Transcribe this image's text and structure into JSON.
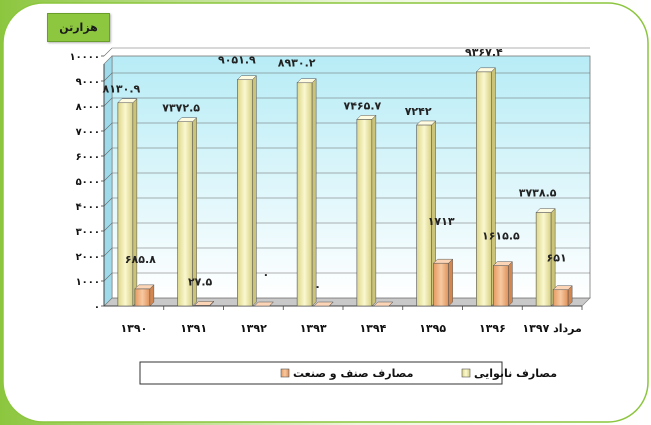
{
  "unit_label": "هزارتن",
  "chart_data": {
    "type": "bar",
    "categories": [
      "۱۳۹۰",
      "۱۳۹۱",
      "۱۳۹۲",
      "۱۳۹۳",
      "۱۳۹۴",
      "۱۳۹۵",
      "۱۳۹۶",
      "مرداد ۱۳۹۷"
    ],
    "series": [
      {
        "name": "مصارف نانوایی",
        "values": [
          8130.9,
          7372.5,
          9051.9,
          8930.2,
          7465.7,
          7242,
          9367.4,
          3738.5
        ],
        "labels": [
          "۸۱۳۰.۹",
          "۷۳۷۲.۵",
          "۹۰۵۱.۹",
          "۸۹۳۰.۲",
          "۷۴۶۵.۷",
          "۷۲۴۲",
          "۹۳۶۷.۴",
          "۳۷۳۸.۵"
        ],
        "color": "#f5f0b8"
      },
      {
        "name": "مصارف صنف و صنعت",
        "values": [
          685.8,
          27.5,
          0,
          0,
          0,
          1713,
          1615.5,
          651
        ],
        "labels": [
          "۶۸۵.۸",
          "۲۷.۵",
          "۰",
          "۰",
          "",
          "۱۷۱۳",
          "۱۶۱۵.۵",
          "۶۵۱"
        ],
        "color": "#f4b183"
      }
    ],
    "ylim": [
      0,
      10000
    ],
    "yticks": [
      0,
      1000,
      2000,
      3000,
      4000,
      5000,
      6000,
      7000,
      8000,
      9000,
      10000
    ],
    "ytick_labels": [
      "۰",
      "۱۰۰۰",
      "۲۰۰۰",
      "۳۰۰۰",
      "۴۰۰۰",
      "۵۰۰۰",
      "۶۰۰۰",
      "۷۰۰۰",
      "۸۰۰۰",
      "۹۰۰۰",
      "۱۰۰۰۰"
    ],
    "grid": true,
    "legend_position": "bottom"
  }
}
